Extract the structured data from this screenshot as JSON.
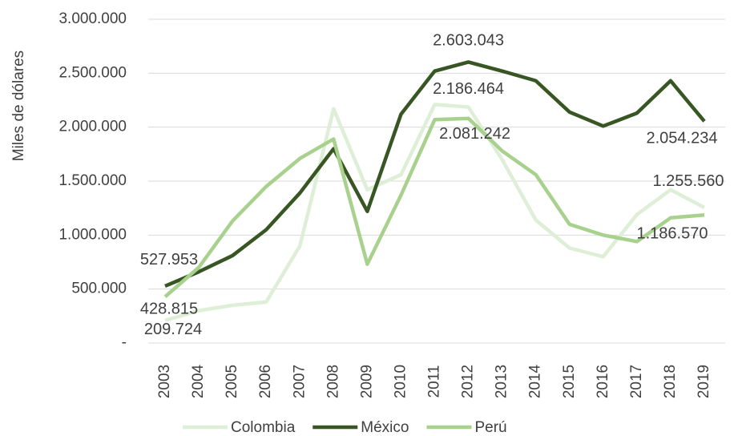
{
  "chart_data": {
    "type": "line",
    "y_label": "Miles de dólares",
    "categories": [
      "2003",
      "2004",
      "2005",
      "2006",
      "2007",
      "2008",
      "2009",
      "2010",
      "2011",
      "2012",
      "2013",
      "2014",
      "2015",
      "2016",
      "2017",
      "2018",
      "2019"
    ],
    "series": [
      {
        "name": "Colombia",
        "color": "#dfeed6",
        "values": [
          209724,
          300000,
          350000,
          380000,
          900000,
          2170000,
          1420000,
          1560000,
          2210000,
          2186464,
          1700000,
          1140000,
          880000,
          800000,
          1190000,
          1420000,
          1255560
        ],
        "value_labels": [
          "209.724",
          null,
          null,
          null,
          null,
          null,
          null,
          null,
          null,
          "2.186.464",
          null,
          null,
          null,
          null,
          null,
          null,
          "1.255.560"
        ]
      },
      {
        "name": "México",
        "color": "#375623",
        "values": [
          527953,
          660000,
          810000,
          1050000,
          1390000,
          1800000,
          1220000,
          2120000,
          2520000,
          2603043,
          2520000,
          2430000,
          2140000,
          2010000,
          2130000,
          2430000,
          2054234
        ],
        "value_labels": [
          "527.953",
          null,
          null,
          null,
          null,
          null,
          null,
          null,
          null,
          "2.603.043",
          null,
          null,
          null,
          null,
          null,
          null,
          "2.054.234"
        ]
      },
      {
        "name": "Perú",
        "color": "#a9d18e",
        "values": [
          428815,
          700000,
          1130000,
          1450000,
          1710000,
          1890000,
          730000,
          1370000,
          2070000,
          2081242,
          1780000,
          1560000,
          1100000,
          1000000,
          940000,
          1160000,
          1186570
        ],
        "value_labels": [
          "428.815",
          null,
          null,
          null,
          null,
          null,
          null,
          null,
          null,
          "2.081.242",
          null,
          null,
          null,
          null,
          null,
          null,
          "1.186.570"
        ]
      }
    ],
    "ylim": [
      0,
      3000000
    ],
    "yticks": [
      {
        "value": 0,
        "label": "-"
      },
      {
        "value": 500000,
        "label": "500.000"
      },
      {
        "value": 1000000,
        "label": "1.000.000"
      },
      {
        "value": 1500000,
        "label": "1.500.000"
      },
      {
        "value": 2000000,
        "label": "2.000.000"
      },
      {
        "value": 2500000,
        "label": "2.500.000"
      },
      {
        "value": 3000000,
        "label": "3.000.000"
      }
    ],
    "grid": true
  }
}
